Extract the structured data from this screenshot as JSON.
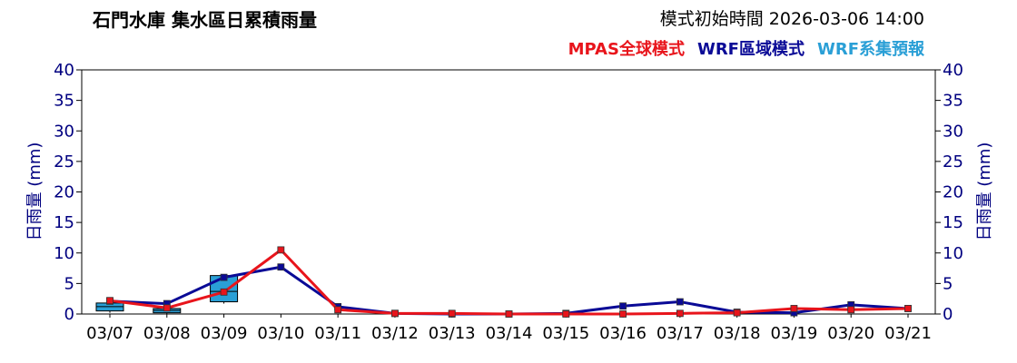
{
  "header": {
    "title": "石門水庫 集水區日累積雨量",
    "init_time": "模式初始時間 2026-03-06 14:00"
  },
  "legend": [
    {
      "label": "MPAS全球模式",
      "color": "#e8141b"
    },
    {
      "label": "WRF區域模式",
      "color": "#0a0a96"
    },
    {
      "label": "WRF系集預報",
      "color": "#2a9fd6"
    }
  ],
  "chart_data": {
    "type": "line",
    "ylabel_left": "日雨量 (mm)",
    "ylabel_right": "日雨量 (mm)",
    "ylim": [
      0,
      40
    ],
    "yticks": [
      0,
      5,
      10,
      15,
      20,
      25,
      30,
      35,
      40
    ],
    "grid": false,
    "categories": [
      "03/07",
      "03/08",
      "03/09",
      "03/10",
      "03/11",
      "03/12",
      "03/13",
      "03/14",
      "03/15",
      "03/16",
      "03/17",
      "03/18",
      "03/19",
      "03/20",
      "03/21"
    ],
    "series": [
      {
        "name": "MPAS全球模式",
        "color": "#e8141b",
        "values": [
          2.2,
          1.0,
          3.6,
          10.5,
          0.7,
          0.1,
          0.1,
          0.0,
          0.0,
          0.0,
          0.1,
          0.2,
          0.9,
          0.7,
          0.9
        ]
      },
      {
        "name": "WRF區域模式",
        "color": "#0a0a96",
        "values": [
          2.1,
          1.7,
          6.0,
          7.7,
          1.2,
          0.1,
          0.0,
          0.0,
          0.1,
          1.3,
          2.0,
          0.3,
          0.2,
          1.5,
          0.9
        ]
      }
    ],
    "ensemble": {
      "name": "WRF系集預報",
      "color": "#2a9fd6",
      "boxes": [
        {
          "category": "03/07",
          "low": 0.2,
          "q1": 0.5,
          "median": 1.2,
          "q3": 1.8,
          "high": 1.8
        },
        {
          "category": "03/08",
          "low": 0.0,
          "q1": 0.2,
          "median": 0.6,
          "q3": 0.9,
          "high": 0.9
        },
        {
          "category": "03/09",
          "low": 1.7,
          "q1": 2.0,
          "median": 3.7,
          "q3": 6.3,
          "high": 6.3
        }
      ]
    }
  }
}
